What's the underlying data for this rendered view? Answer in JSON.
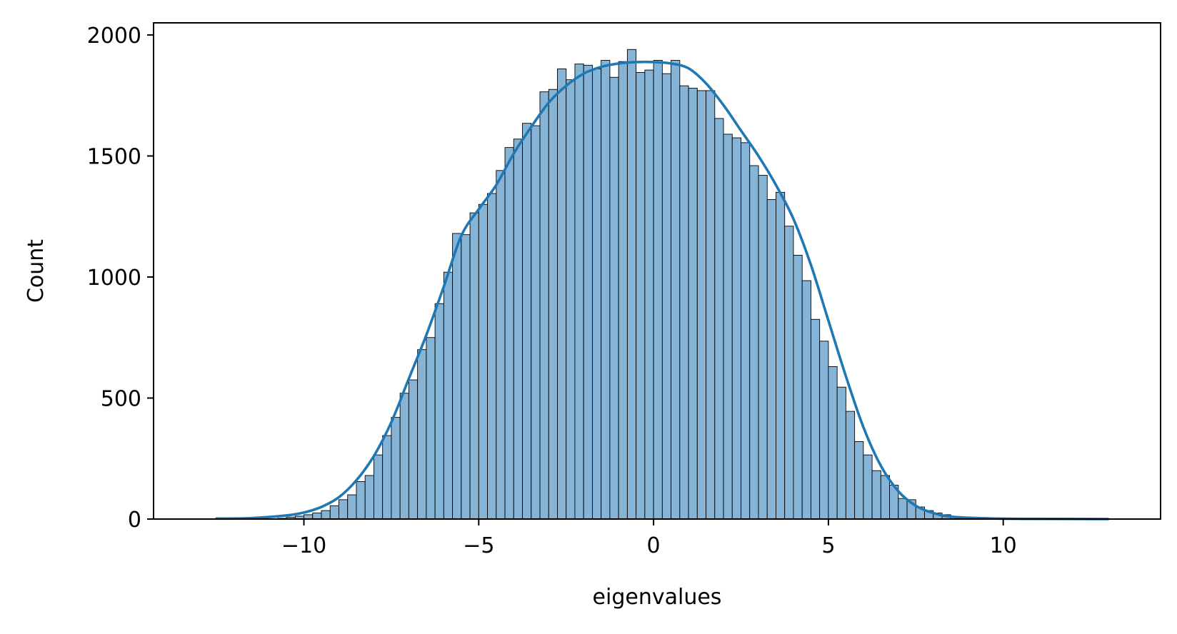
{
  "chart_data": {
    "type": "bar",
    "subtype": "histogram-with-kde",
    "title": "",
    "xlabel": "eigenvalues",
    "ylabel": "Count",
    "xlim": [
      -14.3,
      14.5
    ],
    "ylim": [
      0,
      2050
    ],
    "xticks": [
      -10,
      -5,
      0,
      5,
      10
    ],
    "xtick_labels": [
      "−10",
      "−5",
      "0",
      "5",
      "10"
    ],
    "yticks": [
      0,
      500,
      1000,
      1500,
      2000
    ],
    "ytick_labels": [
      "0",
      "500",
      "1000",
      "1500",
      "2000"
    ],
    "grid": false,
    "legend": "none",
    "colors": {
      "bar_fill": "#86b4d7",
      "bar_edge": "#000000",
      "kde_line": "#1f77b4",
      "axis": "#000000"
    },
    "bin_width": 0.25,
    "bins": [
      {
        "x": -10.75,
        "count": 3
      },
      {
        "x": -10.5,
        "count": 8
      },
      {
        "x": -10.25,
        "count": 12
      },
      {
        "x": -10.0,
        "count": 18
      },
      {
        "x": -9.75,
        "count": 25
      },
      {
        "x": -9.5,
        "count": 35
      },
      {
        "x": -9.25,
        "count": 55
      },
      {
        "x": -9.0,
        "count": 80
      },
      {
        "x": -8.75,
        "count": 100
      },
      {
        "x": -8.5,
        "count": 155
      },
      {
        "x": -8.25,
        "count": 180
      },
      {
        "x": -8.0,
        "count": 265
      },
      {
        "x": -7.75,
        "count": 345
      },
      {
        "x": -7.5,
        "count": 420
      },
      {
        "x": -7.25,
        "count": 520
      },
      {
        "x": -7.0,
        "count": 575
      },
      {
        "x": -6.75,
        "count": 700
      },
      {
        "x": -6.5,
        "count": 750
      },
      {
        "x": -6.25,
        "count": 890
      },
      {
        "x": -6.0,
        "count": 1020
      },
      {
        "x": -5.75,
        "count": 1180
      },
      {
        "x": -5.5,
        "count": 1175
      },
      {
        "x": -5.25,
        "count": 1265
      },
      {
        "x": -5.0,
        "count": 1300
      },
      {
        "x": -4.75,
        "count": 1345
      },
      {
        "x": -4.5,
        "count": 1440
      },
      {
        "x": -4.25,
        "count": 1535
      },
      {
        "x": -4.0,
        "count": 1570
      },
      {
        "x": -3.75,
        "count": 1635
      },
      {
        "x": -3.5,
        "count": 1625
      },
      {
        "x": -3.25,
        "count": 1765
      },
      {
        "x": -3.0,
        "count": 1775
      },
      {
        "x": -2.75,
        "count": 1860
      },
      {
        "x": -2.5,
        "count": 1815
      },
      {
        "x": -2.25,
        "count": 1880
      },
      {
        "x": -2.0,
        "count": 1875
      },
      {
        "x": -1.75,
        "count": 1860
      },
      {
        "x": -1.5,
        "count": 1895
      },
      {
        "x": -1.25,
        "count": 1825
      },
      {
        "x": -1.0,
        "count": 1890
      },
      {
        "x": -0.75,
        "count": 1940
      },
      {
        "x": -0.5,
        "count": 1845
      },
      {
        "x": -0.25,
        "count": 1855
      },
      {
        "x": 0.0,
        "count": 1895
      },
      {
        "x": 0.25,
        "count": 1840
      },
      {
        "x": 0.5,
        "count": 1895
      },
      {
        "x": 0.75,
        "count": 1790
      },
      {
        "x": 1.0,
        "count": 1780
      },
      {
        "x": 1.25,
        "count": 1770
      },
      {
        "x": 1.5,
        "count": 1770
      },
      {
        "x": 1.75,
        "count": 1655
      },
      {
        "x": 2.0,
        "count": 1590
      },
      {
        "x": 2.25,
        "count": 1575
      },
      {
        "x": 2.5,
        "count": 1555
      },
      {
        "x": 2.75,
        "count": 1460
      },
      {
        "x": 3.0,
        "count": 1420
      },
      {
        "x": 3.25,
        "count": 1320
      },
      {
        "x": 3.5,
        "count": 1350
      },
      {
        "x": 3.75,
        "count": 1210
      },
      {
        "x": 4.0,
        "count": 1090
      },
      {
        "x": 4.25,
        "count": 985
      },
      {
        "x": 4.5,
        "count": 825
      },
      {
        "x": 4.75,
        "count": 735
      },
      {
        "x": 5.0,
        "count": 630
      },
      {
        "x": 5.25,
        "count": 545
      },
      {
        "x": 5.5,
        "count": 445
      },
      {
        "x": 5.75,
        "count": 320
      },
      {
        "x": 6.0,
        "count": 265
      },
      {
        "x": 6.25,
        "count": 200
      },
      {
        "x": 6.5,
        "count": 180
      },
      {
        "x": 6.75,
        "count": 140
      },
      {
        "x": 7.0,
        "count": 85
      },
      {
        "x": 7.25,
        "count": 80
      },
      {
        "x": 7.5,
        "count": 50
      },
      {
        "x": 7.75,
        "count": 35
      },
      {
        "x": 8.0,
        "count": 25
      },
      {
        "x": 8.25,
        "count": 18
      },
      {
        "x": 8.5,
        "count": 10
      },
      {
        "x": 8.75,
        "count": 6
      },
      {
        "x": 9.0,
        "count": 3
      }
    ],
    "kde": [
      {
        "x": -12.5,
        "y": 2
      },
      {
        "x": -11.5,
        "y": 4
      },
      {
        "x": -10.5,
        "y": 15
      },
      {
        "x": -10.0,
        "y": 27
      },
      {
        "x": -9.5,
        "y": 50
      },
      {
        "x": -9.0,
        "y": 90
      },
      {
        "x": -8.5,
        "y": 160
      },
      {
        "x": -8.0,
        "y": 260
      },
      {
        "x": -7.5,
        "y": 400
      },
      {
        "x": -7.0,
        "y": 580
      },
      {
        "x": -6.5,
        "y": 760
      },
      {
        "x": -6.0,
        "y": 960
      },
      {
        "x": -5.5,
        "y": 1170
      },
      {
        "x": -5.0,
        "y": 1280
      },
      {
        "x": -4.5,
        "y": 1380
      },
      {
        "x": -4.0,
        "y": 1510
      },
      {
        "x": -3.5,
        "y": 1620
      },
      {
        "x": -3.0,
        "y": 1720
      },
      {
        "x": -2.5,
        "y": 1790
      },
      {
        "x": -2.0,
        "y": 1840
      },
      {
        "x": -1.5,
        "y": 1868
      },
      {
        "x": -1.0,
        "y": 1882
      },
      {
        "x": -0.5,
        "y": 1888
      },
      {
        "x": 0.0,
        "y": 1888
      },
      {
        "x": 0.5,
        "y": 1882
      },
      {
        "x": 1.0,
        "y": 1862
      },
      {
        "x": 1.5,
        "y": 1800
      },
      {
        "x": 2.0,
        "y": 1710
      },
      {
        "x": 2.5,
        "y": 1605
      },
      {
        "x": 3.0,
        "y": 1500
      },
      {
        "x": 3.5,
        "y": 1380
      },
      {
        "x": 4.0,
        "y": 1240
      },
      {
        "x": 4.5,
        "y": 1050
      },
      {
        "x": 5.0,
        "y": 820
      },
      {
        "x": 5.5,
        "y": 590
      },
      {
        "x": 6.0,
        "y": 380
      },
      {
        "x": 6.5,
        "y": 220
      },
      {
        "x": 7.0,
        "y": 115
      },
      {
        "x": 7.5,
        "y": 55
      },
      {
        "x": 8.0,
        "y": 25
      },
      {
        "x": 8.5,
        "y": 10
      },
      {
        "x": 9.5,
        "y": 3
      },
      {
        "x": 10.5,
        "y": 1
      },
      {
        "x": 13.0,
        "y": 0
      }
    ]
  }
}
